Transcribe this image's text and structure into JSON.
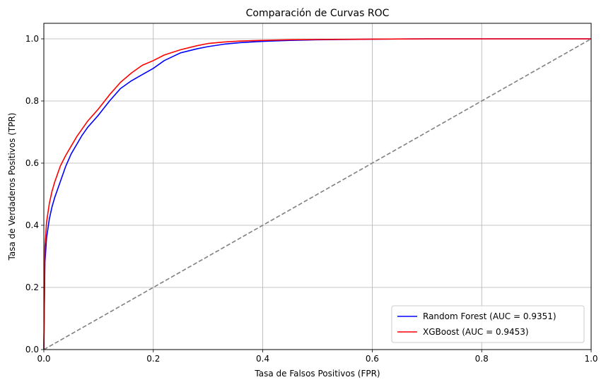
{
  "chart_data": {
    "type": "line",
    "title": "Comparación de Curvas ROC",
    "xlabel": "Tasa de Falsos Positivos (FPR)",
    "ylabel": "Tasa de Verdaderos Positivos (TPR)",
    "xlim": [
      0,
      1.0
    ],
    "ylim": [
      0,
      1.05
    ],
    "xticks": [
      0.0,
      0.2,
      0.4,
      0.6,
      0.8,
      1.0
    ],
    "xtick_labels": [
      "0.0",
      "0.2",
      "0.4",
      "0.6",
      "0.8",
      "1.0"
    ],
    "yticks": [
      0.0,
      0.2,
      0.4,
      0.6,
      0.8,
      1.0
    ],
    "ytick_labels": [
      "0.0",
      "0.2",
      "0.4",
      "0.6",
      "0.8",
      "1.0"
    ],
    "grid": true,
    "legend_position": "lower-right",
    "series": [
      {
        "name": "Random Forest (AUC = 0.9351)",
        "color": "#0000ff",
        "x": [
          0.0,
          0.002,
          0.005,
          0.01,
          0.015,
          0.02,
          0.03,
          0.04,
          0.05,
          0.06,
          0.07,
          0.08,
          0.09,
          0.1,
          0.12,
          0.14,
          0.16,
          0.18,
          0.2,
          0.22,
          0.25,
          0.28,
          0.3,
          0.33,
          0.36,
          0.4,
          0.45,
          0.5,
          0.6,
          0.7,
          0.8,
          0.9,
          1.0
        ],
        "y": [
          0.0,
          0.28,
          0.36,
          0.42,
          0.46,
          0.49,
          0.54,
          0.59,
          0.63,
          0.66,
          0.69,
          0.715,
          0.735,
          0.755,
          0.8,
          0.84,
          0.865,
          0.885,
          0.905,
          0.93,
          0.955,
          0.968,
          0.975,
          0.983,
          0.988,
          0.992,
          0.995,
          0.997,
          0.999,
          1.0,
          1.0,
          1.0,
          1.0
        ]
      },
      {
        "name": "XGBoost (AUC = 0.9453)",
        "color": "#ff0000",
        "x": [
          0.0,
          0.002,
          0.005,
          0.01,
          0.015,
          0.02,
          0.03,
          0.04,
          0.05,
          0.06,
          0.07,
          0.08,
          0.09,
          0.1,
          0.12,
          0.14,
          0.16,
          0.18,
          0.2,
          0.22,
          0.25,
          0.28,
          0.3,
          0.33,
          0.36,
          0.4,
          0.45,
          0.5,
          0.6,
          0.7,
          0.8,
          0.9,
          1.0
        ],
        "y": [
          0.0,
          0.33,
          0.41,
          0.47,
          0.51,
          0.54,
          0.59,
          0.625,
          0.655,
          0.685,
          0.71,
          0.735,
          0.755,
          0.775,
          0.82,
          0.86,
          0.89,
          0.915,
          0.93,
          0.948,
          0.965,
          0.978,
          0.985,
          0.99,
          0.993,
          0.995,
          0.997,
          0.998,
          0.999,
          1.0,
          1.0,
          1.0,
          1.0
        ]
      },
      {
        "color": "#808080",
        "dashed": true,
        "x": [
          0.0,
          1.0
        ],
        "y": [
          0.0,
          1.0
        ]
      }
    ]
  }
}
